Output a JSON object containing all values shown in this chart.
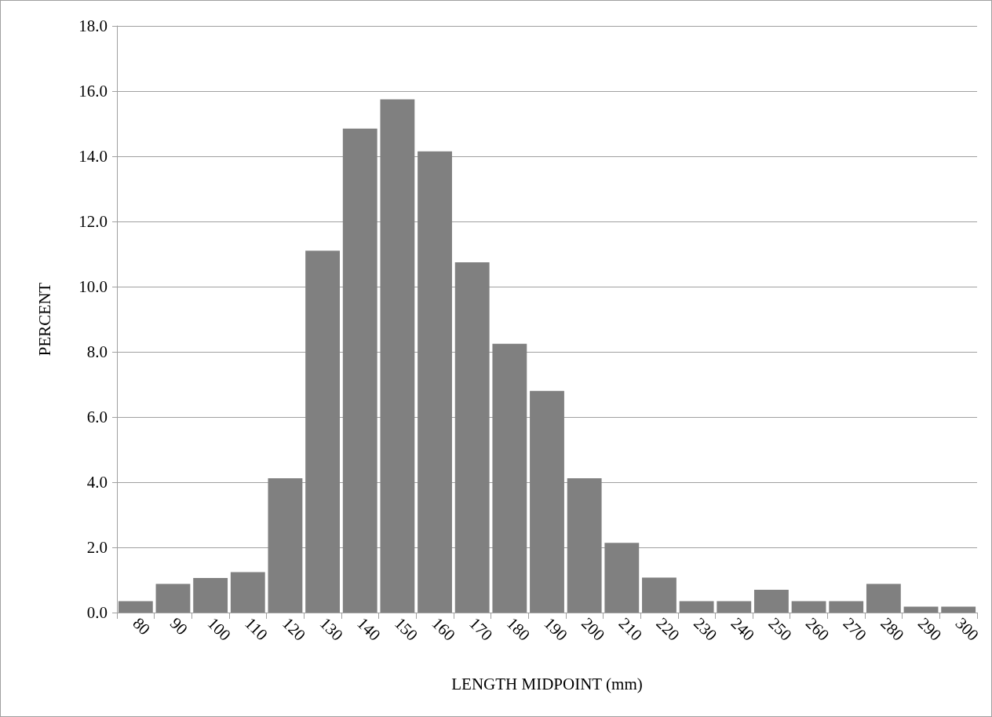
{
  "chart_data": {
    "type": "bar",
    "xlabel": "LENGTH MIDPOINT (mm)",
    "ylabel": "PERCENT",
    "categories": [
      "80",
      "90",
      "100",
      "110",
      "120",
      "130",
      "140",
      "150",
      "160",
      "170",
      "180",
      "190",
      "200",
      "210",
      "220",
      "230",
      "240",
      "250",
      "260",
      "270",
      "280",
      "290",
      "300"
    ],
    "values": [
      0.35,
      0.88,
      1.06,
      1.24,
      4.12,
      11.1,
      14.85,
      15.75,
      14.15,
      10.75,
      8.25,
      6.8,
      4.12,
      2.14,
      1.07,
      0.35,
      0.35,
      0.7,
      0.35,
      0.35,
      0.88,
      0.18,
      0.18
    ],
    "color": "#808080",
    "ylim": [
      0,
      18
    ],
    "yticks": [
      {
        "value": 0,
        "label": "0.0"
      },
      {
        "value": 2,
        "label": "2.0"
      },
      {
        "value": 4,
        "label": "4.0"
      },
      {
        "value": 6,
        "label": "6.0"
      },
      {
        "value": 8,
        "label": "8.0"
      },
      {
        "value": 10,
        "label": "10.0"
      },
      {
        "value": 12,
        "label": "12.0"
      },
      {
        "value": 14,
        "label": "14.0"
      },
      {
        "value": 16,
        "label": "16.0"
      },
      {
        "value": 18,
        "label": "18.0"
      }
    ],
    "grid": "y"
  }
}
